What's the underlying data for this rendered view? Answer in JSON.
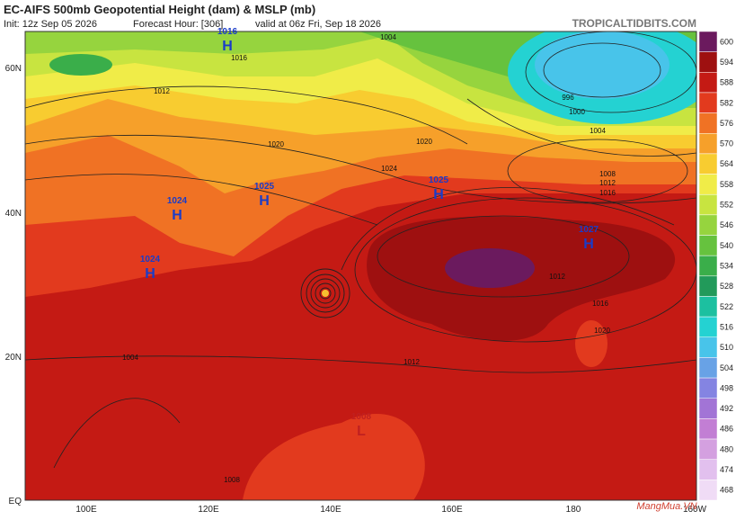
{
  "header": {
    "title": "EC-AIFS 500mb Geopotential Height (dam) & MSLP (mb)",
    "subtitle": [
      "Init: 12z Sep 05 2026",
      "Forecast Hour: [306]",
      "valid at 06z Fri, Sep 18 2026"
    ],
    "site": "TROPICALTIDBITS.COM"
  },
  "map": {
    "lat_labels": [
      "60N",
      "40N",
      "20N",
      "EQ"
    ],
    "lon_labels": [
      "100E",
      "120E",
      "140E",
      "160E",
      "180",
      "160W"
    ],
    "pressure_centers": [
      {
        "symbol": "H",
        "value": "1016"
      },
      {
        "symbol": "H",
        "value": "1024"
      },
      {
        "symbol": "H",
        "value": "1025"
      },
      {
        "symbol": "H",
        "value": "1024"
      },
      {
        "symbol": "H",
        "value": "1025"
      },
      {
        "symbol": "H",
        "value": "1027"
      },
      {
        "symbol": "L",
        "value": "1008"
      }
    ],
    "isobar_labels": [
      "1004",
      "1012",
      "1016",
      "1020",
      "1024",
      "996",
      "1000",
      "1004",
      "1008",
      "1012",
      "1016",
      "1020",
      "1012",
      "1016",
      "1020",
      "1012",
      "1004",
      "1008"
    ]
  },
  "colorbar": {
    "labels": [
      "600",
      "594",
      "588",
      "582",
      "576",
      "570",
      "564",
      "558",
      "552",
      "546",
      "540",
      "534",
      "528",
      "522",
      "516",
      "510",
      "504",
      "498",
      "492",
      "486",
      "480",
      "474",
      "468"
    ],
    "colors": [
      "#6b1a5e",
      "#9e1010",
      "#c41a14",
      "#e23a1e",
      "#f07224",
      "#f6a02a",
      "#f8cc30",
      "#f0ec48",
      "#c8e440",
      "#96d43e",
      "#66c23e",
      "#3aae4a",
      "#229a5a",
      "#1cc0a0",
      "#24d2d2",
      "#48c4ea",
      "#68a2e6",
      "#8484e2",
      "#a274d6",
      "#c27ed4",
      "#d4a0e0",
      "#e2c0ee",
      "#f0dcf6"
    ]
  },
  "watermark": "MangMua.VN"
}
